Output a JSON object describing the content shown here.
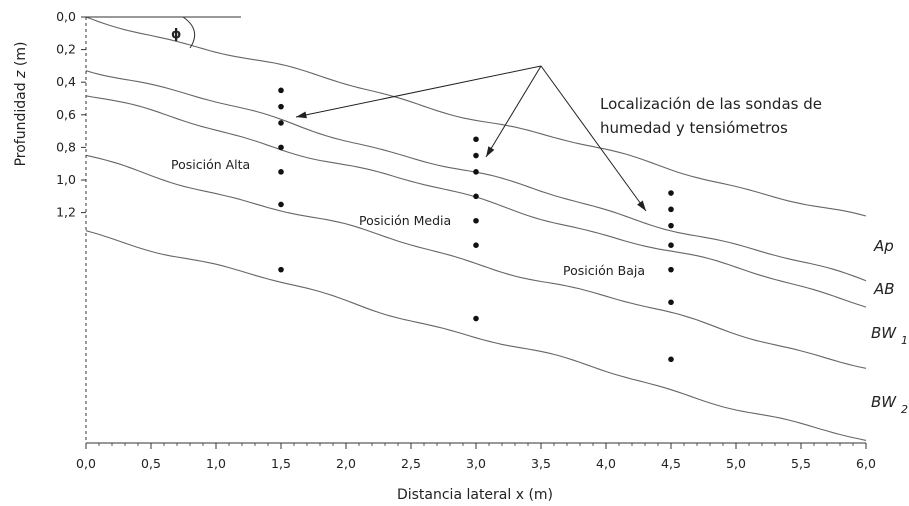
{
  "chart_data": {
    "type": "diagram",
    "xlabel": "Distancia lateral x (m)",
    "ylabel_prefix": "Profundidad ",
    "ylabel_var": "z",
    "ylabel_unit": " (m)",
    "x_ticks": [
      "0,0",
      "0,5",
      "1,0",
      "1,5",
      "2,0",
      "2,5",
      "3,0",
      "3,5",
      "4,0",
      "4,5",
      "5,0",
      "5,5",
      "6,0"
    ],
    "y_ticks": [
      "0,0",
      "0,2",
      "0,4",
      "0,6",
      "0,8",
      "1,0",
      "1,2"
    ],
    "slope_symbol": "ϕ",
    "annotation_line1": "Localización de las sondas de",
    "annotation_line2": "humedad y tensiómetros",
    "positions": [
      "Posición Alta",
      "Posición Media",
      "Posición Baja"
    ],
    "horizons": [
      {
        "name": "Ap",
        "sub": ""
      },
      {
        "name": "AB",
        "sub": ""
      },
      {
        "name": "BW",
        "sub": "1"
      },
      {
        "name": "BW",
        "sub": "2"
      }
    ],
    "boundaries": [
      {
        "x0": 0.0,
        "z0": 0.0,
        "x1": 6.0,
        "z1": 1.24
      },
      {
        "x0": 0.0,
        "z0": 0.31,
        "x1": 6.0,
        "z1": 1.62
      },
      {
        "x0": 0.0,
        "z0": 0.48,
        "x1": 6.0,
        "z1": 1.76
      },
      {
        "x0": 0.0,
        "z0": 0.86,
        "x1": 6.0,
        "z1": 2.15
      },
      {
        "x0": 0.0,
        "z0": 1.31,
        "x1": 6.0,
        "z1": 2.61
      }
    ],
    "probes": [
      {
        "x": 1.5,
        "z": [
          0.45,
          0.55,
          0.65,
          0.8,
          0.95,
          1.15,
          1.55
        ]
      },
      {
        "x": 3.0,
        "z": [
          0.75,
          0.85,
          0.95,
          1.1,
          1.25,
          1.4,
          1.85
        ]
      },
      {
        "x": 4.5,
        "z": [
          1.08,
          1.18,
          1.28,
          1.4,
          1.55,
          1.75,
          2.1
        ]
      }
    ]
  }
}
